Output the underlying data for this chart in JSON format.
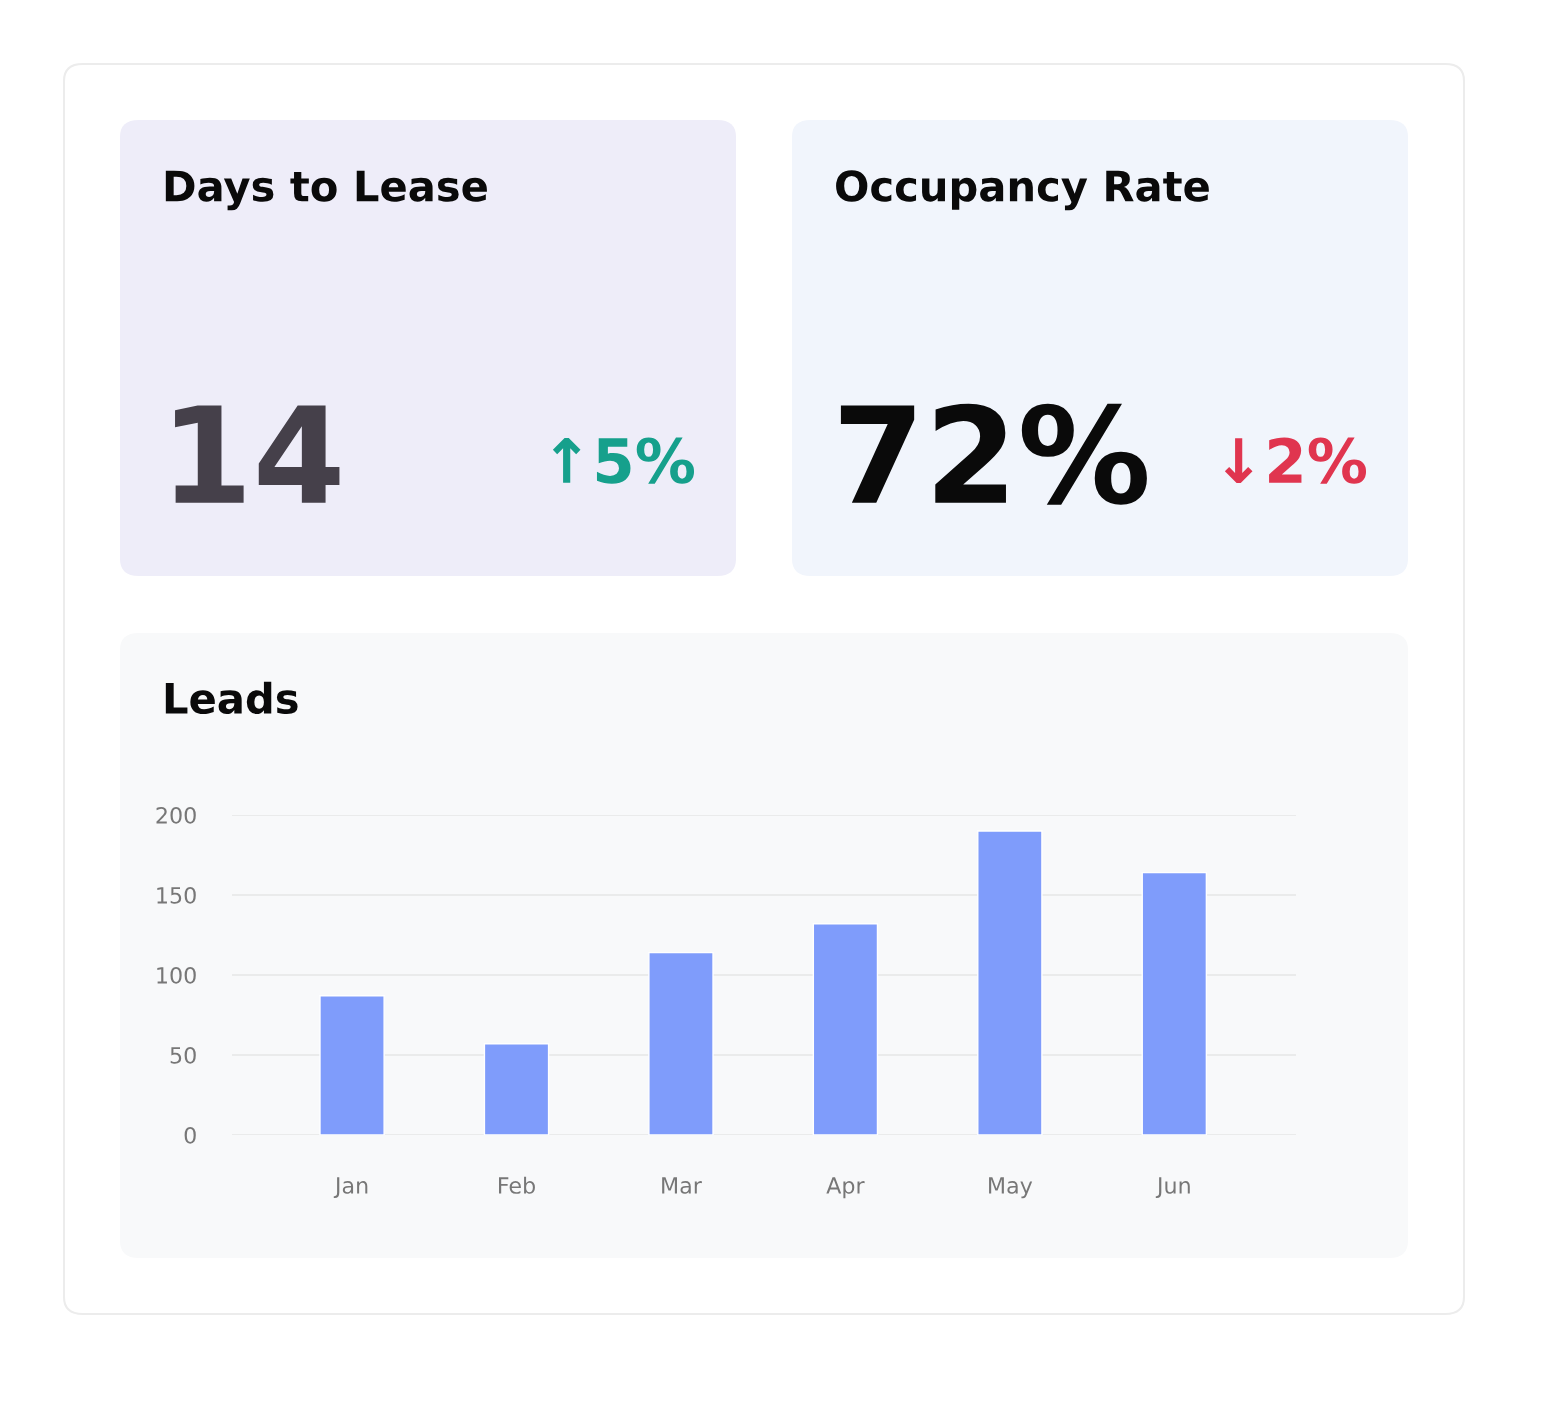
{
  "chart_data": [
    {
      "type": "other",
      "title": "Days to Lease",
      "annotations": [
        "14",
        "↑5%"
      ],
      "colors": [
        "#45404a",
        "#16a08c"
      ]
    },
    {
      "type": "other",
      "title": "Occupancy Rate",
      "annotations": [
        "72%",
        "↓2%"
      ],
      "colors": [
        "#0a0a0a",
        "#e0354f"
      ]
    },
    {
      "type": "bar",
      "title": "Leads",
      "categories": [
        "Jan",
        "Feb",
        "Mar",
        "Apr",
        "May",
        "Jun"
      ],
      "series": [
        {
          "color": "#7f9cfb",
          "values": [
            87,
            57,
            114,
            132,
            190,
            164
          ]
        }
      ],
      "ylim": [
        0,
        200
      ],
      "yticks": [
        0,
        50,
        100,
        150,
        200
      ],
      "grid": "y"
    }
  ]
}
